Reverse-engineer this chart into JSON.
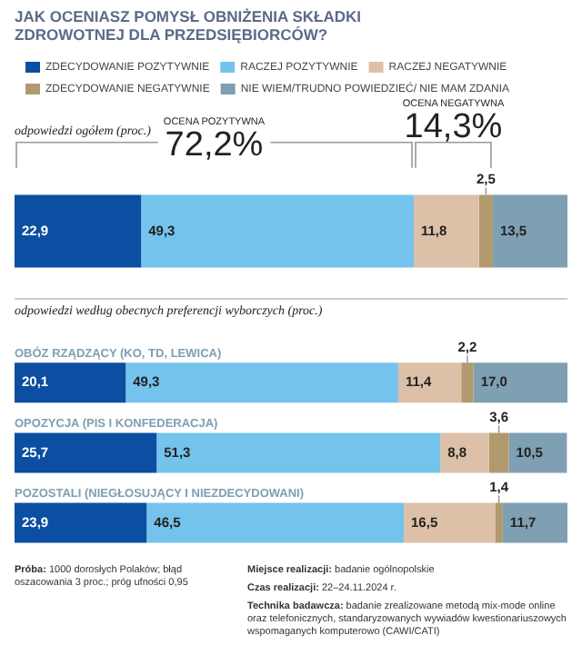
{
  "chart_data": [
    {
      "type": "bar",
      "orientation": "horizontal",
      "stacked": true,
      "title": "JAK OCENIASZ POMYSŁ OBNIŻENIA SKŁADKI ZDROWOTNEJ DLA PRZEDSIĘBIORCÓW?",
      "subtitle": "odpowiedzi ogółem (proc.)",
      "categories": [
        null
      ],
      "tick_labels": false,
      "legend": "top",
      "series": [
        {
          "name": "ZDECYDOWANIE POZYTYWNIE",
          "color": "#0b4ea2",
          "values": [
            22.9
          ],
          "value_labels": [
            "22,9"
          ]
        },
        {
          "name": "RACZEJ POZYTYWNIE",
          "color": "#74c3ec",
          "values": [
            49.3
          ],
          "value_labels": [
            "49,3"
          ]
        },
        {
          "name": "RACZEJ NEGATYWNIE",
          "color": "#dcc0a8",
          "values": [
            11.8
          ],
          "value_labels": [
            "11,8"
          ]
        },
        {
          "name": "ZDECYDOWANIE NEGATYWNIE",
          "color": "#b09a6e",
          "values": [
            2.5
          ],
          "value_labels": [
            "2,5"
          ]
        },
        {
          "name": "NIE WIEM/TRUDNO POWIEDZIEĆ/ NIE MAM ZDANIA",
          "color": "#7f9fb3",
          "values": [
            13.5
          ],
          "value_labels": [
            "13,5"
          ]
        }
      ],
      "annotations": [
        "OCENA POZYTYWNA",
        "72,2%",
        "OCENA NEGATYWNA",
        "14,3%"
      ]
    },
    {
      "type": "bar",
      "orientation": "horizontal",
      "stacked": true,
      "subtitle": "odpowiedzi według obecnych preferencji wyborczych (proc.)",
      "categories": [
        "OBÓZ RZĄDZĄCY (KO, TD, LEWICA)",
        "OPOZYCJA (PIS I KONFEDERACJA)",
        "POZOSTALI (NIEGŁOSUJĄCY I NIEZDECYDOWANI)"
      ],
      "tick_labels": "y",
      "series": [
        {
          "color": "#0b4ea2",
          "values": [
            20.1,
            25.7,
            23.9
          ],
          "value_labels": [
            "20,1",
            "25,7",
            "23,9"
          ]
        },
        {
          "color": "#74c3ec",
          "values": [
            49.3,
            51.3,
            46.5
          ],
          "value_labels": [
            "49,3",
            "51,3",
            "46,5"
          ]
        },
        {
          "color": "#dcc0a8",
          "values": [
            11.4,
            8.8,
            16.5
          ],
          "value_labels": [
            "11,4",
            "8,8",
            "16,5"
          ]
        },
        {
          "color": "#b09a6e",
          "values": [
            2.2,
            3.6,
            1.4
          ],
          "value_labels": [
            "2,2",
            "3,6",
            "1,4"
          ]
        },
        {
          "color": "#7f9fb3",
          "values": [
            17.0,
            10.5,
            11.7
          ],
          "value_labels": [
            "17,0",
            "10,5",
            "11,7"
          ]
        }
      ],
      "annotations": [
        "Próba: 1000 dorosłych Polaków; błąd oszacowania 3 proc.; próg ufności 0,95",
        "Miejsce realizacji: badanie ogólnopolskie",
        "Czas realizacji: 22–24.11.2024 r.",
        "Technika badawcza: badanie zrealizowane metodą mix-mode online oraz telefonicznych, standaryzowanych wywiadów kwestionariuszowych wspomaganych komputerowo (CAWI/CATI)"
      ]
    }
  ]
}
